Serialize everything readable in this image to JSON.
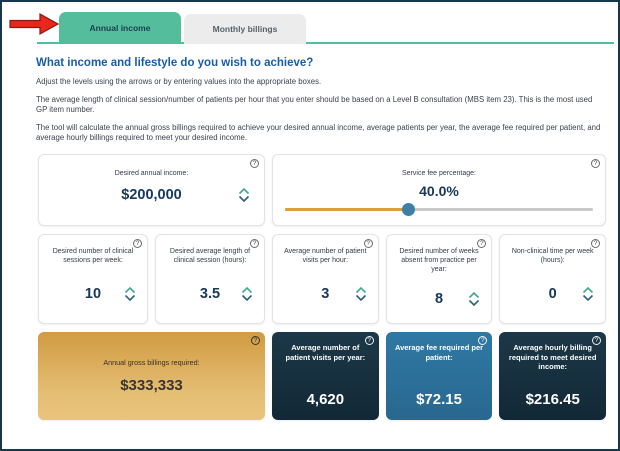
{
  "tabs": {
    "annual": {
      "label": "Annual income",
      "active": true
    },
    "monthly": {
      "label": "Monthly billings",
      "active": false
    }
  },
  "annotation": {
    "red_arrow": "points-to-annual-income-tab"
  },
  "intro": {
    "heading": "What income and lifestyle do you wish to achieve?",
    "para1": "Adjust the levels using the arrows or by entering values into the appropriate boxes.",
    "para2": "The average length of clinical session/number of patients per hour that you enter should be based on a Level B consultation (MBS item 23). This is the most used GP item number.",
    "para3": "The tool will calculate the annual gross billings required to achieve your desired annual income, average patients per year, the average fee required per patient, and average hourly billings required to meet your desired income."
  },
  "inputs": {
    "annual_income": {
      "label": "Desired annual income:",
      "value": "$200,000"
    },
    "service_fee": {
      "label": "Service fee percentage:",
      "value": "40.0%",
      "slider_percent": 40
    },
    "sessions_per_week": {
      "label": "Desired number of clinical sessions per week:",
      "value": "10"
    },
    "session_length": {
      "label": "Desired average length of clinical session (hours):",
      "value": "3.5"
    },
    "visits_per_hour": {
      "label": "Average number of patient visits per hour:",
      "value": "3"
    },
    "weeks_absent": {
      "label": "Desired number of weeks absent from practice per year:",
      "value": "8"
    },
    "non_clinical_time": {
      "label": "Non-clinical time per week (hours):",
      "value": "0"
    }
  },
  "results": {
    "gross_billings": {
      "label": "Annual gross billings required:",
      "value": "$333,333"
    },
    "visits_per_year": {
      "label": "Average number of patient visits per year:",
      "value": "4,620"
    },
    "fee_per_patient": {
      "label": "Average fee required per patient:",
      "value": "$72.15"
    },
    "hourly_billing": {
      "label": "Average hourly billing required to meet desired income:",
      "value": "$216.45"
    }
  },
  "icons": {
    "help": "?"
  },
  "colors": {
    "accent_green": "#53BD9C",
    "heading_blue": "#1A5DA6",
    "value_navy": "#16385A",
    "slider_fill": "#DA9E41",
    "slider_handle": "#3F7FA6",
    "gold_card": "#DBA855",
    "dark_card": "#16303F",
    "blue_card": "#2E75A0",
    "arrow_red": "#E8271C",
    "frame_border": "#16384E"
  }
}
